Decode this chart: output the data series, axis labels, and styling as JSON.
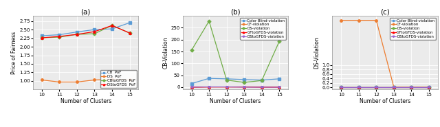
{
  "x": [
    10,
    11,
    12,
    13,
    14,
    15
  ],
  "panel_a": {
    "title": "(a)",
    "xlabel": "Number of Clusters",
    "ylabel": "Price of Fairness",
    "series": [
      {
        "label": "CB  PoF",
        "color": "#5B9BD5",
        "marker": "s",
        "values": [
          2.32,
          2.35,
          2.43,
          2.5,
          2.52,
          2.7
        ]
      },
      {
        "label": "DS  PoF",
        "color": "#ED7D31",
        "marker": "o",
        "values": [
          1.03,
          0.97,
          0.97,
          1.03,
          1.05,
          1.03
        ]
      },
      {
        "label": "CBtoGFDS  PoF",
        "color": "#70AD47",
        "marker": "D",
        "values": [
          2.26,
          2.28,
          2.36,
          2.38,
          2.62,
          2.4
        ]
      },
      {
        "label": "DStoGFDS  PoF",
        "color": "#FF0000",
        "marker": "^",
        "values": [
          2.26,
          2.3,
          2.36,
          2.44,
          2.62,
          2.4
        ]
      }
    ],
    "ylim": [
      0.75,
      2.9
    ],
    "yticks": [
      1.0,
      1.25,
      1.5,
      1.75,
      2.0,
      2.25,
      2.5,
      2.75
    ],
    "legend_loc": "lower right"
  },
  "panel_b": {
    "title": "(b)",
    "xlabel": "Number of Clusters",
    "ylabel": "CB-Violation",
    "series": [
      {
        "label": "Color Blind-violation",
        "color": "#5B9BD5",
        "marker": "s",
        "values": [
          15,
          37,
          35,
          32,
          30,
          35
        ]
      },
      {
        "label": "CF-violation",
        "color": "#ED7D31",
        "marker": "o",
        "values": [
          0,
          1,
          1,
          1,
          1,
          1
        ]
      },
      {
        "label": "DS-violation",
        "color": "#70AD47",
        "marker": "D",
        "values": [
          155,
          278,
          30,
          20,
          28,
          193
        ]
      },
      {
        "label": "GFtoGFDS-violation",
        "color": "#FF0000",
        "marker": "^",
        "values": [
          0,
          1,
          1,
          1,
          0,
          0
        ]
      },
      {
        "label": "DStoGFDS-violation",
        "color": "#9966CC",
        "marker": "v",
        "values": [
          0,
          1,
          1,
          0,
          0,
          0
        ]
      }
    ],
    "ylim": [
      -10,
      300
    ],
    "yticks": [
      0,
      50,
      100,
      150,
      200,
      250
    ],
    "legend_loc": "upper right"
  },
  "panel_c": {
    "title": "(c)",
    "xlabel": "Number of Clusters",
    "ylabel": "DS-Violation",
    "series": [
      {
        "label": "Color Blind-violation",
        "color": "#5B9BD5",
        "marker": "s",
        "values": [
          0.0,
          0.0,
          0.0,
          0.0,
          0.0,
          0.0
        ]
      },
      {
        "label": "CF-violation",
        "color": "#ED7D31",
        "marker": "o",
        "values": [
          3.0,
          3.0,
          3.0,
          0.0,
          0.0,
          0.0
        ]
      },
      {
        "label": "DS-violation",
        "color": "#70AD47",
        "marker": "D",
        "values": [
          0.0,
          0.0,
          0.0,
          0.0,
          0.0,
          0.0
        ]
      },
      {
        "label": "GFtoGFDS-violation",
        "color": "#FF0000",
        "marker": "^",
        "values": [
          0.0,
          0.0,
          0.0,
          0.0,
          0.0,
          0.0
        ]
      },
      {
        "label": "DStoGFDS-violation",
        "color": "#9966CC",
        "marker": "v",
        "values": [
          0.0,
          0.0,
          0.0,
          0.0,
          0.0,
          0.0
        ]
      }
    ],
    "ylim": [
      -0.1,
      3.2
    ],
    "yticks": [
      0.0,
      0.2,
      0.4,
      0.6,
      0.8,
      1.0
    ],
    "legend_loc": "upper right"
  },
  "figure_width": 6.4,
  "figure_height": 1.85,
  "dpi": 100
}
